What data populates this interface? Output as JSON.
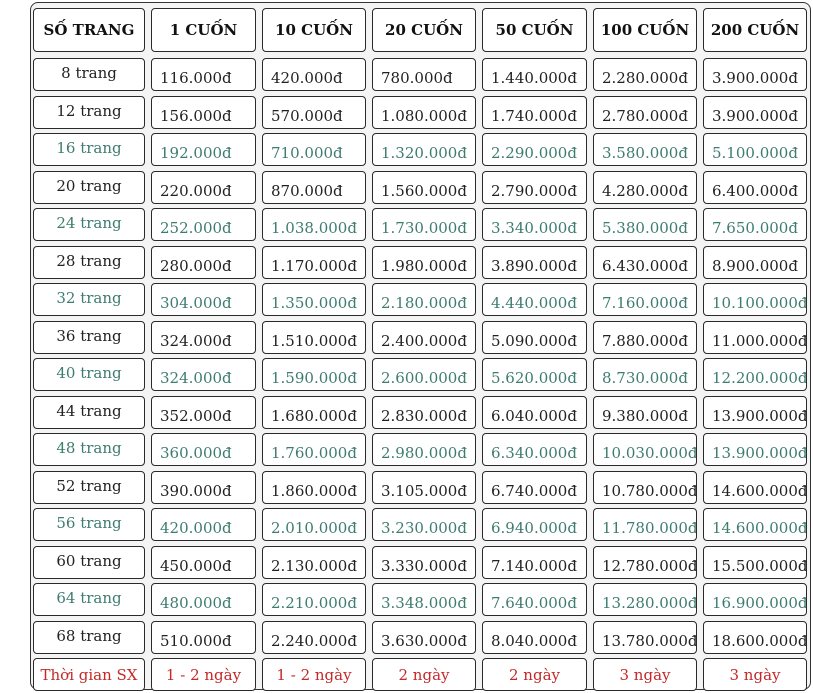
{
  "headers": [
    "SỐ TRANG",
    "1 CUỐN",
    "10 CUỐN",
    "20 CUỐN",
    "50 CUỐN",
    "100 CUỐN",
    "200 CUỐN"
  ],
  "rows": [
    {
      "label": "8 trang",
      "prices": [
        "116.000đ",
        "420.000đ",
        "780.000đ",
        "1.440.000đ",
        "2.280.000đ",
        "3.900.000đ"
      ],
      "tone": "dark"
    },
    {
      "label": "12 trang",
      "prices": [
        "156.000đ",
        "570.000đ",
        "1.080.000đ",
        "1.740.000đ",
        "2.780.000đ",
        "3.900.000đ"
      ],
      "tone": "dark"
    },
    {
      "label": "16 trang",
      "prices": [
        "192.000đ",
        "710.000đ",
        "1.320.000đ",
        "2.290.000đ",
        "3.580.000đ",
        "5.100.000đ"
      ],
      "tone": "green"
    },
    {
      "label": "20 trang",
      "prices": [
        "220.000đ",
        "870.000đ",
        "1.560.000đ",
        "2.790.000đ",
        "4.280.000đ",
        "6.400.000đ"
      ],
      "tone": "dark"
    },
    {
      "label": "24 trang",
      "prices": [
        "252.000đ",
        "1.038.000đ",
        "1.730.000đ",
        "3.340.000đ",
        "5.380.000đ",
        "7.650.000đ"
      ],
      "tone": "green"
    },
    {
      "label": "28 trang",
      "prices": [
        "280.000đ",
        "1.170.000đ",
        "1.980.000đ",
        "3.890.000đ",
        "6.430.000đ",
        "8.900.000đ"
      ],
      "tone": "dark"
    },
    {
      "label": "32 trang",
      "prices": [
        "304.000đ",
        "1.350.000đ",
        "2.180.000đ",
        "4.440.000đ",
        "7.160.000đ",
        "10.100.000đ"
      ],
      "tone": "green"
    },
    {
      "label": "36 trang",
      "prices": [
        "324.000đ",
        "1.510.000đ",
        "2.400.000đ",
        "5.090.000đ",
        "7.880.000đ",
        "11.000.000đ"
      ],
      "tone": "dark"
    },
    {
      "label": "40 trang",
      "prices": [
        "324.000đ",
        "1.590.000đ",
        "2.600.000đ",
        "5.620.000đ",
        "8.730.000đ",
        "12.200.000đ"
      ],
      "tone": "green"
    },
    {
      "label": "44 trang",
      "prices": [
        "352.000đ",
        "1.680.000đ",
        "2.830.000đ",
        "6.040.000đ",
        "9.380.000đ",
        "13.900.000đ"
      ],
      "tone": "dark"
    },
    {
      "label": "48 trang",
      "prices": [
        "360.000đ",
        "1.760.000đ",
        "2.980.000đ",
        "6.340.000đ",
        "10.030.000đ",
        "13.900.000đ"
      ],
      "tone": "green"
    },
    {
      "label": "52 trang",
      "prices": [
        "390.000đ",
        "1.860.000đ",
        "3.105.000đ",
        "6.740.000đ",
        "10.780.000đ",
        "14.600.000đ"
      ],
      "tone": "dark"
    },
    {
      "label": "56 trang",
      "prices": [
        "420.000đ",
        "2.010.000đ",
        "3.230.000đ",
        "6.940.000đ",
        "11.780.000đ",
        "14.600.000đ"
      ],
      "tone": "green"
    },
    {
      "label": "60 trang",
      "prices": [
        "450.000đ",
        "2.130.000đ",
        "3.330.000đ",
        "7.140.000đ",
        "12.780.000đ",
        "15.500.000đ"
      ],
      "tone": "dark"
    },
    {
      "label": "64 trang",
      "prices": [
        "480.000đ",
        "2.210.000đ",
        "3.348.000đ",
        "7.640.000đ",
        "13.280.000đ",
        "16.900.000đ"
      ],
      "tone": "green"
    },
    {
      "label": "68 trang",
      "prices": [
        "510.000đ",
        "2.240.000đ",
        "3.630.000đ",
        "8.040.000đ",
        "13.780.000đ",
        "18.600.000đ"
      ],
      "tone": "dark"
    }
  ],
  "footer": {
    "label": "Thời gian SX",
    "values": [
      "1 - 2 ngày",
      "1 - 2 ngày",
      "2 ngày",
      "2 ngày",
      "3 ngày",
      "3 ngày"
    ]
  },
  "colors": {
    "dark": "#222222",
    "green": "#3e7c6f",
    "red": "#c62828"
  }
}
